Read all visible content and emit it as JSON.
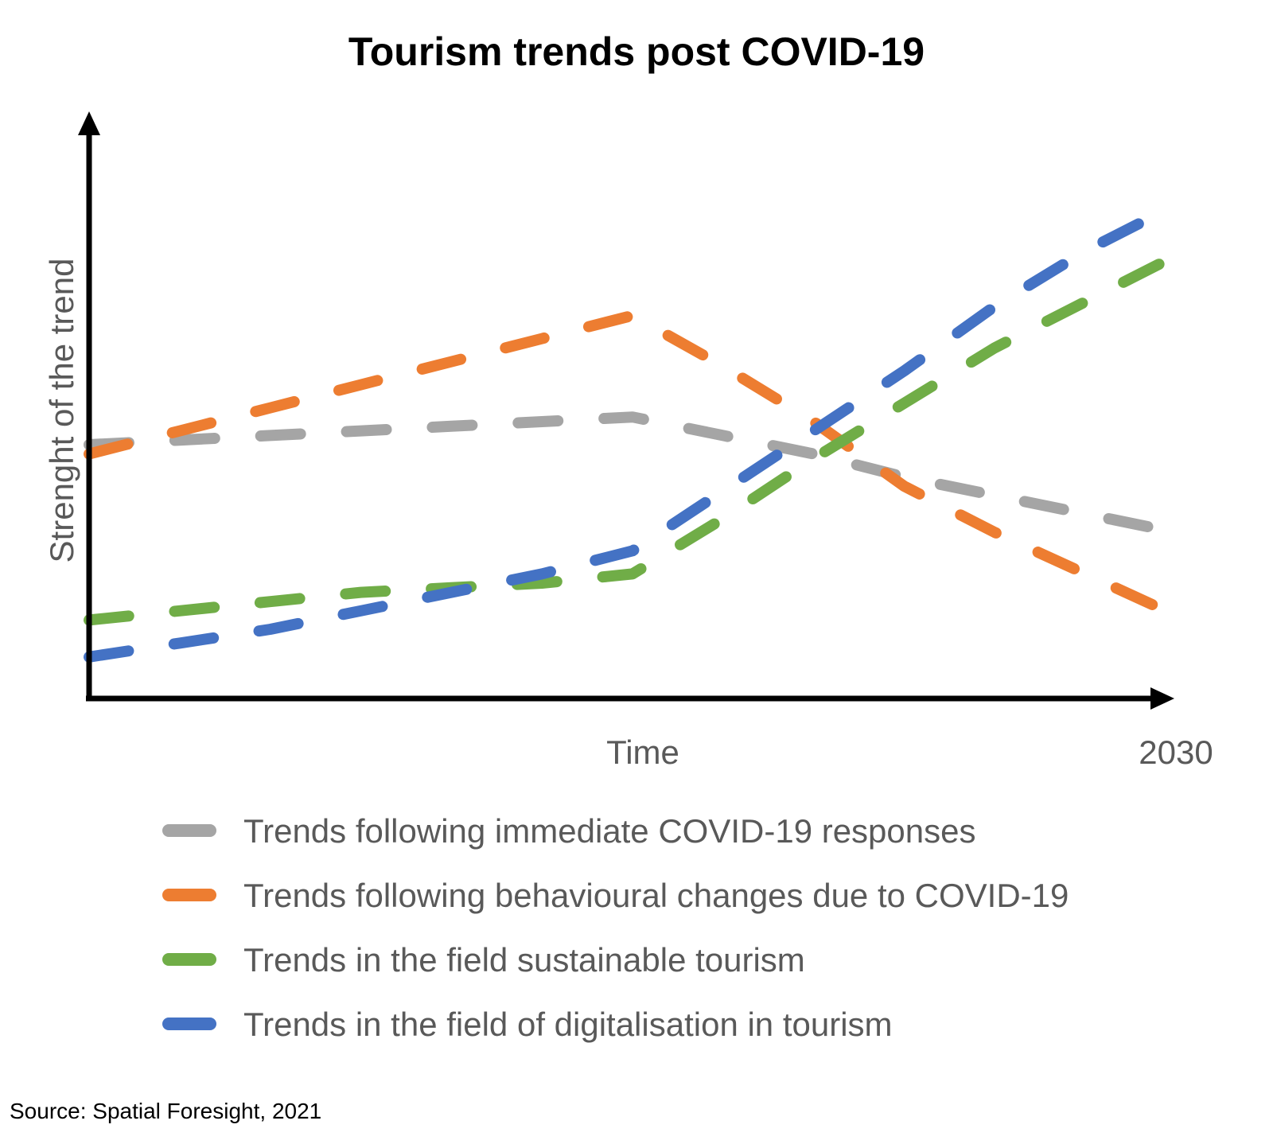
{
  "chart_data": {
    "type": "line",
    "title": "Tourism trends post COVID-19",
    "xlabel": "Time",
    "ylabel": "Strenght of the trend",
    "x_end_label": "2030",
    "x": [
      0,
      1,
      2,
      3,
      4,
      5,
      6,
      7,
      8,
      9,
      10,
      11,
      12
    ],
    "xlim": [
      0,
      12
    ],
    "ylim": [
      0,
      100
    ],
    "grid": false,
    "legend_position": "bottom",
    "line_style": "dashed",
    "series": [
      {
        "name": "Trends following immediate COVID-19 responses",
        "color": "#A5A5A5",
        "values": [
          55,
          56,
          57,
          58,
          59,
          60,
          61,
          57,
          53,
          48,
          44,
          40,
          36
        ]
      },
      {
        "name": "Trends following behavioural changes due to COVID-19",
        "color": "#ED7D31",
        "values": [
          53,
          58,
          63,
          68,
          73,
          78,
          83,
          72,
          60,
          46,
          36,
          27,
          18
        ]
      },
      {
        "name": "Trends in the field sustainable tourism",
        "color": "#70AD47",
        "values": [
          17,
          19,
          21,
          23,
          24,
          25,
          27,
          39,
          52,
          64,
          76,
          86,
          96
        ]
      },
      {
        "name": "Trends in the field of digitalisation in tourism",
        "color": "#4472C4",
        "values": [
          9,
          12,
          15,
          19,
          23,
          27,
          32,
          45,
          58,
          71,
          85,
          97,
          107
        ]
      }
    ]
  },
  "source": "Source: Spatial Foresight, 2021"
}
